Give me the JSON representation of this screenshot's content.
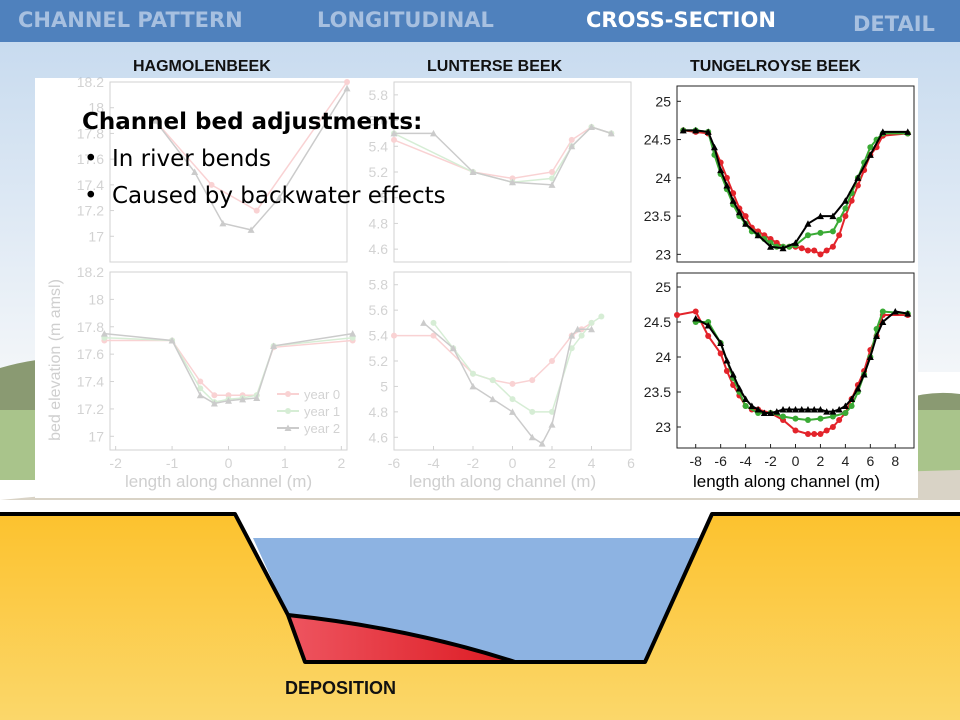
{
  "nav": {
    "items": [
      {
        "label": "CHANNEL PATTERN",
        "active": false
      },
      {
        "label": "LONGITUDINAL",
        "active": false
      },
      {
        "label": "CROSS-SECTION",
        "active": true
      },
      {
        "label": "DETAIL",
        "active": false
      }
    ]
  },
  "rivers": [
    "HAGMOLENBEEK",
    "LUNTERSE BEEK",
    "TUNGELROYSE BEEK"
  ],
  "callout": {
    "heading": "Channel bed adjustments:",
    "bullets": [
      "In river bends",
      "Caused by backwater effects"
    ]
  },
  "xlabel": "length along channel (m)",
  "ylabel": "bed elevation (m amsl)",
  "deposition_label": "DEPOSITION",
  "colors": {
    "nav": "#4f81bd",
    "sky": "#dde8f2",
    "sand": "#fcc430",
    "water": "#8db3e2",
    "deposition": "#e8323c",
    "year0": "#e3242b",
    "year1": "#3aaa35",
    "year2": "#000000"
  },
  "chart_data": [
    {
      "type": "line",
      "river": "HAGMOLENBEEK",
      "panel": "top",
      "faded": true,
      "ylim": [
        16.8,
        18.2
      ],
      "yticks": [
        17,
        17.2,
        17.4,
        17.6,
        17.8,
        18,
        18.2
      ],
      "xlim": [
        -2,
        2.2
      ],
      "series": [
        {
          "name": "year 0",
          "x": [
            -1.2,
            -0.2,
            0.6,
            2.2
          ],
          "y": [
            17.9,
            17.4,
            17.2,
            18.2
          ]
        },
        {
          "name": "year 2",
          "x": [
            -1.2,
            -0.5,
            0,
            0.5,
            1,
            2.2
          ],
          "y": [
            17.9,
            17.5,
            17.1,
            17.05,
            17.3,
            18.15
          ]
        }
      ]
    },
    {
      "type": "line",
      "river": "HAGMOLENBEEK",
      "panel": "bottom",
      "faded": true,
      "ylim": [
        16.9,
        18.2
      ],
      "yticks": [
        17,
        17.2,
        17.4,
        17.6,
        17.8,
        18,
        18.2
      ],
      "xlim": [
        -2.1,
        2.1
      ],
      "xticks": [
        -2,
        -1,
        0,
        1,
        2
      ],
      "legend": [
        "year 0",
        "year 1",
        "year 2"
      ],
      "legend_position": "bottom-right",
      "series": [
        {
          "name": "year 0",
          "x": [
            -2.2,
            -1,
            -0.5,
            -0.25,
            0,
            0.25,
            0.5,
            0.8,
            2.2
          ],
          "y": [
            17.7,
            17.7,
            17.4,
            17.3,
            17.3,
            17.3,
            17.3,
            17.65,
            17.7
          ]
        },
        {
          "name": "year 1",
          "x": [
            -2.2,
            -1,
            -0.5,
            -0.25,
            0,
            0.25,
            0.5,
            0.8,
            2.2
          ],
          "y": [
            17.72,
            17.7,
            17.35,
            17.25,
            17.27,
            17.28,
            17.3,
            17.66,
            17.72
          ]
        },
        {
          "name": "year 2",
          "x": [
            -2.2,
            -1,
            -0.5,
            -0.25,
            0,
            0.25,
            0.5,
            0.8,
            2.2
          ],
          "y": [
            17.75,
            17.7,
            17.3,
            17.24,
            17.26,
            17.27,
            17.28,
            17.66,
            17.75
          ]
        }
      ]
    },
    {
      "type": "line",
      "river": "LUNTERSE BEEK",
      "panel": "top",
      "faded": true,
      "ylim": [
        4.5,
        5.9
      ],
      "yticks": [
        4.6,
        4.8,
        5,
        5.2,
        5.4,
        5.6,
        5.8
      ],
      "xlim": [
        -6,
        6
      ],
      "series": [
        {
          "name": "year 0",
          "x": [
            -6,
            -2,
            0,
            2,
            3,
            4,
            5
          ],
          "y": [
            5.45,
            5.2,
            5.15,
            5.2,
            5.45,
            5.55,
            5.5
          ]
        },
        {
          "name": "year 1",
          "x": [
            -6,
            -2,
            0,
            2,
            3,
            4,
            5
          ],
          "y": [
            5.5,
            5.2,
            5.12,
            5.15,
            5.4,
            5.55,
            5.5
          ]
        },
        {
          "name": "year 2",
          "x": [
            -6,
            -4,
            -2,
            0,
            2,
            3,
            4,
            5
          ],
          "y": [
            5.5,
            5.5,
            5.2,
            5.12,
            5.1,
            5.4,
            5.55,
            5.5
          ]
        }
      ]
    },
    {
      "type": "line",
      "river": "LUNTERSE BEEK",
      "panel": "bottom",
      "faded": true,
      "ylim": [
        4.5,
        5.9
      ],
      "yticks": [
        4.6,
        4.8,
        5,
        5.2,
        5.4,
        5.6,
        5.8
      ],
      "xlim": [
        -6,
        6
      ],
      "xticks": [
        -6,
        -4,
        -2,
        0,
        2,
        4,
        6
      ],
      "series": [
        {
          "name": "year 0",
          "x": [
            -6,
            -4,
            -2,
            -1,
            0,
            1,
            2,
            3,
            3.5,
            4
          ],
          "y": [
            5.4,
            5.4,
            5.1,
            5.05,
            5.02,
            5.05,
            5.2,
            5.4,
            5.45,
            5.5
          ]
        },
        {
          "name": "year 1",
          "x": [
            -4,
            -3,
            -2,
            -1,
            0,
            1,
            2,
            3,
            3.5,
            4,
            4.5
          ],
          "y": [
            5.5,
            5.3,
            5.1,
            5.05,
            4.9,
            4.8,
            4.8,
            5.3,
            5.4,
            5.5,
            5.55
          ]
        },
        {
          "name": "year 2",
          "x": [
            -4.5,
            -3,
            -2,
            -1,
            0,
            1,
            1.5,
            2,
            3,
            3.3,
            4
          ],
          "y": [
            5.5,
            5.3,
            5.0,
            4.9,
            4.8,
            4.6,
            4.55,
            4.7,
            5.4,
            5.45,
            5.45
          ]
        }
      ]
    },
    {
      "type": "line",
      "river": "TUNGELROYSE BEEK",
      "panel": "top",
      "faded": false,
      "ylim": [
        22.9,
        25.2
      ],
      "yticks": [
        23,
        23.5,
        24,
        24.5,
        25
      ],
      "xlim": [
        -9.5,
        9.5
      ],
      "series": [
        {
          "name": "year 0",
          "x": [
            -9,
            -8,
            -7,
            -6,
            -5.5,
            -5,
            -4.5,
            -4,
            -3.5,
            -3,
            -2.5,
            -2,
            -1.5,
            -1,
            -0.5,
            0,
            0.5,
            1,
            1.5,
            2,
            2.5,
            3,
            3.5,
            4,
            4.5,
            5,
            5.5,
            6,
            6.5,
            7,
            9
          ],
          "y": [
            24.62,
            24.6,
            24.58,
            24.2,
            24.0,
            23.8,
            23.6,
            23.5,
            23.35,
            23.3,
            23.25,
            23.2,
            23.15,
            23.1,
            23.1,
            23.1,
            23.08,
            23.05,
            23.05,
            23.0,
            23.05,
            23.1,
            23.25,
            23.5,
            23.7,
            23.9,
            24.1,
            24.3,
            24.4,
            24.55,
            24.58
          ]
        },
        {
          "name": "year 1",
          "x": [
            -9,
            -8,
            -7,
            -6.5,
            -6,
            -5.5,
            -5,
            -4.5,
            -4,
            -3.5,
            -3,
            -2.5,
            -2,
            -1.5,
            -1,
            -0.5,
            0,
            1,
            2,
            3,
            3.5,
            4,
            4.5,
            5,
            5.5,
            6,
            6.5,
            7,
            9
          ],
          "y": [
            24.62,
            24.62,
            24.6,
            24.3,
            24.05,
            23.85,
            23.65,
            23.5,
            23.4,
            23.3,
            23.25,
            23.2,
            23.15,
            23.1,
            23.1,
            23.1,
            23.12,
            23.25,
            23.28,
            23.3,
            23.45,
            23.6,
            23.8,
            24.0,
            24.2,
            24.4,
            24.5,
            24.58,
            24.58
          ]
        },
        {
          "name": "year 2",
          "x": [
            -9,
            -8,
            -7,
            -6.5,
            -6,
            -5.5,
            -5,
            -4.5,
            -4,
            -3,
            -2,
            -1,
            0,
            1,
            2,
            3,
            4,
            5,
            6,
            7,
            9
          ],
          "y": [
            24.62,
            24.62,
            24.6,
            24.4,
            24.1,
            23.9,
            23.7,
            23.55,
            23.4,
            23.25,
            23.1,
            23.08,
            23.15,
            23.4,
            23.5,
            23.5,
            23.7,
            24.0,
            24.3,
            24.6,
            24.6
          ]
        }
      ]
    },
    {
      "type": "line",
      "river": "TUNGELROYSE BEEK",
      "panel": "bottom",
      "faded": false,
      "ylim": [
        22.7,
        25.2
      ],
      "yticks": [
        23,
        23.5,
        24,
        24.5,
        25
      ],
      "xlim": [
        -9.5,
        9.5
      ],
      "xticks": [
        -8,
        -6,
        -4,
        -2,
        0,
        2,
        4,
        6,
        8
      ],
      "series": [
        {
          "name": "year 0",
          "x": [
            -9.5,
            -8,
            -7,
            -6,
            -5.5,
            -5,
            -4.5,
            -4,
            -3.5,
            -3,
            -2,
            -1,
            0,
            1,
            1.5,
            2,
            2.5,
            3,
            3.5,
            4,
            4.5,
            5,
            5.5,
            6,
            6.5,
            7,
            9
          ],
          "y": [
            24.6,
            24.65,
            24.3,
            24.05,
            23.8,
            23.6,
            23.45,
            23.3,
            23.25,
            23.25,
            23.2,
            23.1,
            22.95,
            22.9,
            22.9,
            22.9,
            22.95,
            23.0,
            23.1,
            23.2,
            23.4,
            23.6,
            23.8,
            24.1,
            24.3,
            24.6,
            24.6
          ]
        },
        {
          "name": "year 1",
          "x": [
            -8,
            -7,
            -6,
            -5,
            -4.5,
            -4,
            -3,
            -2,
            -1,
            0,
            1,
            2,
            3,
            4,
            4.5,
            5,
            5.5,
            6,
            6.5,
            7,
            9
          ],
          "y": [
            24.5,
            24.5,
            24.2,
            23.7,
            23.5,
            23.3,
            23.2,
            23.2,
            23.15,
            23.12,
            23.1,
            23.12,
            23.15,
            23.2,
            23.3,
            23.5,
            23.75,
            24.0,
            24.4,
            24.65,
            24.62
          ]
        },
        {
          "name": "year 2",
          "x": [
            -8,
            -7,
            -6,
            -5.5,
            -5,
            -4.5,
            -4,
            -3.5,
            -3,
            -2.5,
            -2,
            -1.5,
            -1,
            -0.5,
            0,
            0.5,
            1,
            1.5,
            2,
            2.5,
            3,
            3.5,
            4,
            4.5,
            5,
            5.5,
            6,
            6.5,
            7,
            8,
            9
          ],
          "y": [
            24.55,
            24.45,
            24.2,
            23.95,
            23.75,
            23.55,
            23.4,
            23.3,
            23.25,
            23.2,
            23.2,
            23.22,
            23.25,
            23.25,
            23.25,
            23.25,
            23.25,
            23.25,
            23.25,
            23.22,
            23.22,
            23.25,
            23.3,
            23.4,
            23.55,
            23.75,
            24.0,
            24.3,
            24.5,
            24.65,
            24.62
          ]
        }
      ]
    }
  ]
}
